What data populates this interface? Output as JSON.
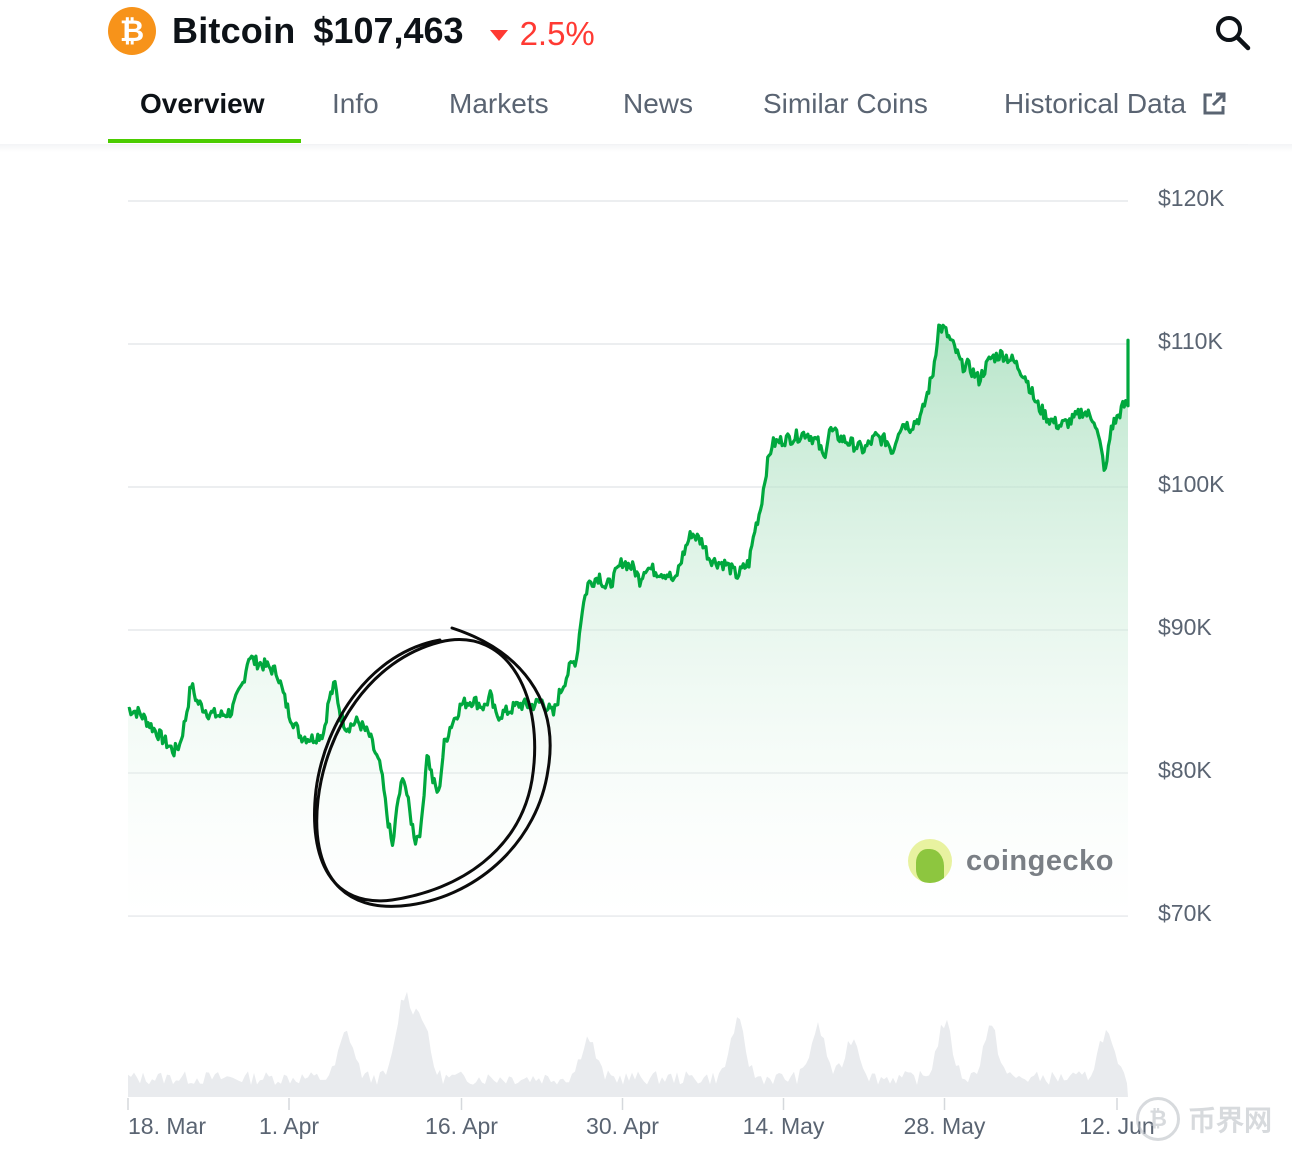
{
  "header": {
    "logo_glyph": "₿",
    "coin_name": "Bitcoin",
    "price": "$107,463",
    "change": "2.5%",
    "change_direction": "down",
    "change_color": "#ff3a33"
  },
  "tabs": [
    {
      "label": "Overview",
      "active": true
    },
    {
      "label": "Info",
      "active": false
    },
    {
      "label": "Markets",
      "active": false
    },
    {
      "label": "News",
      "active": false
    },
    {
      "label": "Similar Coins",
      "active": false
    },
    {
      "label": "Historical Data",
      "active": false,
      "icon": "external-link-icon"
    }
  ],
  "icons": {
    "search": "search-icon"
  },
  "watermark": {
    "text": "coingecko"
  },
  "site_badge": {
    "glyph": "₿",
    "text": "币界网"
  },
  "chart_data": {
    "type": "area",
    "line_color": "#00a83e",
    "fill_color": "#bfe9cf",
    "y_ticks": [
      "$120K",
      "$110K",
      "$100K",
      "$90K",
      "$80K",
      "$70K"
    ],
    "y_tick_values": [
      120000,
      110000,
      100000,
      90000,
      80000,
      70000
    ],
    "ylim": [
      70000,
      120000
    ],
    "x_ticks": [
      "18. Mar",
      "1. Apr",
      "16. Apr",
      "30. Apr",
      "14. May",
      "28. May",
      "12. Jun"
    ],
    "x_tick_days": [
      0,
      14,
      29,
      43,
      57,
      71,
      86
    ],
    "xlim_days": [
      0,
      88
    ],
    "grid": true,
    "series": [
      {
        "values": [
          [
            0,
            84500
          ],
          [
            1,
            84200
          ],
          [
            2,
            83300
          ],
          [
            3,
            82400
          ],
          [
            4,
            81500
          ],
          [
            4.5,
            82000
          ],
          [
            5,
            83800
          ],
          [
            5.5,
            86200
          ],
          [
            6,
            85000
          ],
          [
            7,
            84200
          ],
          [
            8,
            84000
          ],
          [
            9,
            84300
          ],
          [
            10,
            86300
          ],
          [
            10.5,
            88200
          ],
          [
            11,
            87800
          ],
          [
            12,
            87500
          ],
          [
            13,
            87000
          ],
          [
            13.5,
            85500
          ],
          [
            14,
            84200
          ],
          [
            15,
            82600
          ],
          [
            16,
            82400
          ],
          [
            17,
            82800
          ],
          [
            17.5,
            85200
          ],
          [
            18,
            86200
          ],
          [
            18.5,
            84000
          ],
          [
            19,
            83200
          ],
          [
            20,
            83600
          ],
          [
            21,
            82600
          ],
          [
            22,
            80200
          ],
          [
            22.5,
            77200
          ],
          [
            23,
            74800
          ],
          [
            23.5,
            78200
          ],
          [
            24,
            79800
          ],
          [
            24.5,
            77200
          ],
          [
            25,
            75300
          ],
          [
            25.5,
            76200
          ],
          [
            26,
            81500
          ],
          [
            26.5,
            79500
          ],
          [
            27,
            78500
          ],
          [
            27.5,
            82000
          ],
          [
            28,
            83200
          ],
          [
            29,
            84800
          ],
          [
            30,
            85100
          ],
          [
            31,
            84600
          ],
          [
            31.5,
            85400
          ],
          [
            32,
            84000
          ],
          [
            33,
            84300
          ],
          [
            34,
            84800
          ],
          [
            35,
            84700
          ],
          [
            36,
            85000
          ],
          [
            37,
            84100
          ],
          [
            37.5,
            85500
          ],
          [
            38,
            86500
          ],
          [
            38.5,
            87500
          ],
          [
            39,
            88000
          ],
          [
            39.5,
            91500
          ],
          [
            40,
            93200
          ],
          [
            41,
            93800
          ],
          [
            41.5,
            93000
          ],
          [
            42,
            93300
          ],
          [
            43,
            94800
          ],
          [
            44,
            94300
          ],
          [
            44.5,
            93500
          ],
          [
            45,
            94400
          ],
          [
            46,
            94100
          ],
          [
            47,
            93900
          ],
          [
            47.5,
            93300
          ],
          [
            48,
            94600
          ],
          [
            48.5,
            95800
          ],
          [
            49,
            96800
          ],
          [
            50,
            96100
          ],
          [
            50.5,
            95100
          ],
          [
            51,
            94800
          ],
          [
            52,
            94600
          ],
          [
            53,
            93800
          ],
          [
            53.5,
            94300
          ],
          [
            54,
            94700
          ],
          [
            54.5,
            97000
          ],
          [
            55,
            98500
          ],
          [
            55.5,
            101200
          ],
          [
            56,
            103000
          ],
          [
            57,
            103300
          ],
          [
            58,
            103500
          ],
          [
            59,
            103800
          ],
          [
            60,
            103100
          ],
          [
            60.5,
            102000
          ],
          [
            61,
            104000
          ],
          [
            62,
            103400
          ],
          [
            63,
            103000
          ],
          [
            64,
            102600
          ],
          [
            65,
            103500
          ],
          [
            66,
            103200
          ],
          [
            66.5,
            102500
          ],
          [
            67,
            104000
          ],
          [
            67.5,
            104500
          ],
          [
            68,
            104200
          ],
          [
            69,
            105000
          ],
          [
            70,
            108000
          ],
          [
            70.5,
            111200
          ],
          [
            71,
            111000
          ],
          [
            72,
            109500
          ],
          [
            72.5,
            108500
          ],
          [
            73,
            108500
          ],
          [
            74,
            107500
          ],
          [
            75,
            109000
          ],
          [
            76,
            109300
          ],
          [
            77,
            108800
          ],
          [
            78,
            107800
          ],
          [
            79,
            105800
          ],
          [
            80,
            104800
          ],
          [
            81,
            104300
          ],
          [
            82,
            104600
          ],
          [
            83,
            105300
          ],
          [
            84,
            104800
          ],
          [
            84.5,
            103000
          ],
          [
            85,
            101000
          ],
          [
            85.5,
            104200
          ],
          [
            86,
            104800
          ],
          [
            86.5,
            105600
          ],
          [
            87,
            105900
          ],
          [
            88,
            106100
          ],
          [
            88.5,
            108400
          ],
          [
            89,
            110000
          ],
          [
            89.5,
            109800
          ],
          [
            90,
            109500
          ],
          [
            90.5,
            108600
          ],
          [
            91,
            107400
          ]
        ]
      }
    ]
  }
}
